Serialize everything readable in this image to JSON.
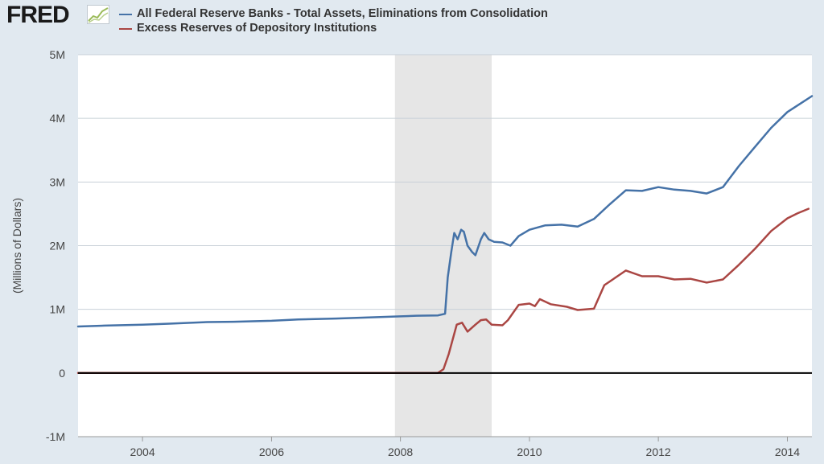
{
  "header": {
    "logo_text": "FRED",
    "logo_icon": "line-chart-icon"
  },
  "colors": {
    "page_background": "#e1e9f0",
    "plot_background": "#ffffff",
    "recession_shading": "#e6e6e6",
    "gridline": "#c8d0d8",
    "zero_line": "#000000",
    "series_total_assets": "#4572a7",
    "series_excess_reserves": "#aa4643"
  },
  "chart_data": {
    "type": "line",
    "ylabel": "(Millions of Dollars)",
    "xlim": [
      "2003-01-01",
      "2014-05-20"
    ],
    "ylim": [
      -1000000,
      5000000
    ],
    "x_ticks": [
      {
        "date": "2004-01-01",
        "label": "2004"
      },
      {
        "date": "2006-01-01",
        "label": "2006"
      },
      {
        "date": "2008-01-01",
        "label": "2008"
      },
      {
        "date": "2010-01-01",
        "label": "2010"
      },
      {
        "date": "2012-01-01",
        "label": "2012"
      },
      {
        "date": "2014-01-01",
        "label": "2014"
      }
    ],
    "y_ticks": [
      {
        "value": 5000000,
        "label": "5M"
      },
      {
        "value": 4000000,
        "label": "4M"
      },
      {
        "value": 3000000,
        "label": "3M"
      },
      {
        "value": 2000000,
        "label": "2M"
      },
      {
        "value": 1000000,
        "label": "1M"
      },
      {
        "value": 0,
        "label": "0"
      },
      {
        "value": -1000000,
        "label": "-1M"
      }
    ],
    "grid": true,
    "legend_position": "top",
    "recession": {
      "start": "2007-12-01",
      "end": "2009-06-01"
    },
    "series": [
      {
        "name": "All Federal Reserve Banks - Total Assets, Eliminations from Consolidation",
        "color": "#4572a7",
        "points": [
          [
            "2003-01-01",
            730000
          ],
          [
            "2003-06-01",
            745000
          ],
          [
            "2004-01-01",
            760000
          ],
          [
            "2004-06-01",
            775000
          ],
          [
            "2005-01-01",
            800000
          ],
          [
            "2005-06-01",
            805000
          ],
          [
            "2006-01-01",
            820000
          ],
          [
            "2006-06-01",
            840000
          ],
          [
            "2007-01-01",
            855000
          ],
          [
            "2007-06-01",
            870000
          ],
          [
            "2008-01-01",
            890000
          ],
          [
            "2008-04-01",
            900000
          ],
          [
            "2008-08-01",
            905000
          ],
          [
            "2008-09-10",
            930000
          ],
          [
            "2008-09-25",
            1500000
          ],
          [
            "2008-10-15",
            1900000
          ],
          [
            "2008-11-01",
            2200000
          ],
          [
            "2008-11-20",
            2100000
          ],
          [
            "2008-12-10",
            2250000
          ],
          [
            "2008-12-25",
            2220000
          ],
          [
            "2009-01-15",
            2000000
          ],
          [
            "2009-02-10",
            1900000
          ],
          [
            "2009-03-01",
            1850000
          ],
          [
            "2009-04-01",
            2100000
          ],
          [
            "2009-04-20",
            2200000
          ],
          [
            "2009-05-15",
            2100000
          ],
          [
            "2009-06-15",
            2060000
          ],
          [
            "2009-08-01",
            2050000
          ],
          [
            "2009-09-15",
            2000000
          ],
          [
            "2009-11-01",
            2150000
          ],
          [
            "2010-01-01",
            2250000
          ],
          [
            "2010-04-01",
            2320000
          ],
          [
            "2010-07-01",
            2330000
          ],
          [
            "2010-10-01",
            2300000
          ],
          [
            "2011-01-01",
            2420000
          ],
          [
            "2011-04-01",
            2650000
          ],
          [
            "2011-07-01",
            2870000
          ],
          [
            "2011-10-01",
            2860000
          ],
          [
            "2012-01-01",
            2920000
          ],
          [
            "2012-04-01",
            2880000
          ],
          [
            "2012-07-01",
            2860000
          ],
          [
            "2012-10-01",
            2820000
          ],
          [
            "2013-01-01",
            2920000
          ],
          [
            "2013-04-01",
            3250000
          ],
          [
            "2013-07-01",
            3550000
          ],
          [
            "2013-10-01",
            3850000
          ],
          [
            "2014-01-01",
            4100000
          ],
          [
            "2014-05-20",
            4350000
          ]
        ]
      },
      {
        "name": "Excess Reserves of Depository Institutions",
        "color": "#aa4643",
        "points": [
          [
            "2003-01-01",
            2000
          ],
          [
            "2008-08-01",
            2000
          ],
          [
            "2008-09-01",
            60000
          ],
          [
            "2008-10-01",
            300000
          ],
          [
            "2008-11-15",
            760000
          ],
          [
            "2008-12-15",
            790000
          ],
          [
            "2009-01-15",
            650000
          ],
          [
            "2009-03-01",
            760000
          ],
          [
            "2009-04-01",
            830000
          ],
          [
            "2009-05-01",
            840000
          ],
          [
            "2009-06-01",
            760000
          ],
          [
            "2009-08-01",
            750000
          ],
          [
            "2009-09-01",
            830000
          ],
          [
            "2009-11-01",
            1070000
          ],
          [
            "2010-01-01",
            1090000
          ],
          [
            "2010-02-01",
            1050000
          ],
          [
            "2010-03-01",
            1160000
          ],
          [
            "2010-05-01",
            1080000
          ],
          [
            "2010-08-01",
            1040000
          ],
          [
            "2010-10-01",
            990000
          ],
          [
            "2011-01-01",
            1010000
          ],
          [
            "2011-03-01",
            1380000
          ],
          [
            "2011-07-01",
            1610000
          ],
          [
            "2011-10-01",
            1520000
          ],
          [
            "2012-01-01",
            1520000
          ],
          [
            "2012-04-01",
            1470000
          ],
          [
            "2012-07-01",
            1480000
          ],
          [
            "2012-10-01",
            1420000
          ],
          [
            "2013-01-01",
            1470000
          ],
          [
            "2013-04-01",
            1700000
          ],
          [
            "2013-07-01",
            1950000
          ],
          [
            "2013-10-01",
            2230000
          ],
          [
            "2014-01-01",
            2430000
          ],
          [
            "2014-03-01",
            2510000
          ],
          [
            "2014-05-01",
            2580000
          ]
        ]
      }
    ]
  }
}
